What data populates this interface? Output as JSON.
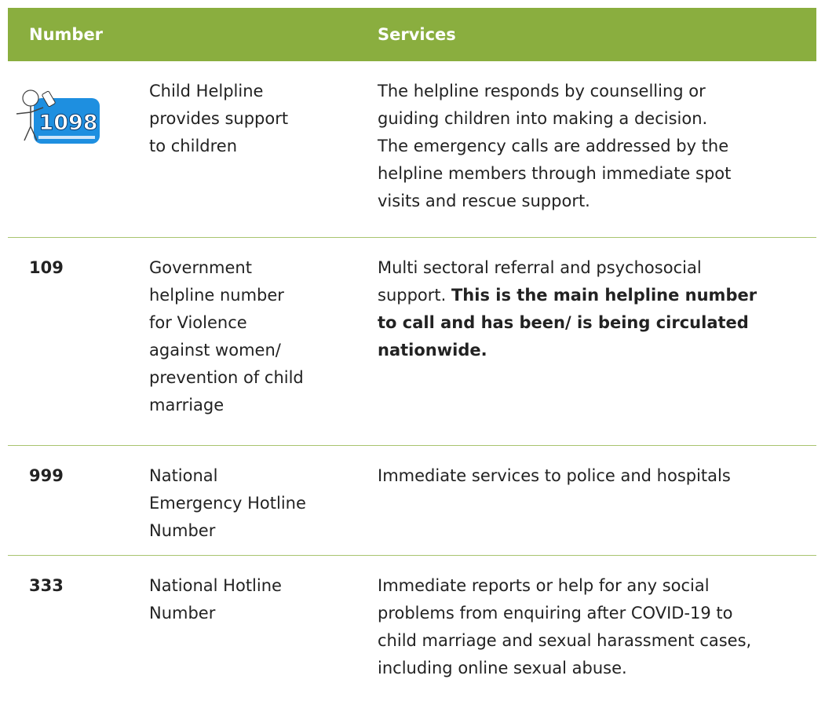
{
  "table": {
    "header": [
      "Number",
      "Services"
    ],
    "rows": [
      {
        "icon_text": "1098",
        "description": [
          "Child Helpline",
          "provides support",
          "to children"
        ],
        "services": [
          [
            {
              "text": "The helpline responds by counselling or"
            }
          ],
          [
            {
              "text": "guiding children into making a decision."
            }
          ],
          [
            {
              "text": "The emergency calls are addressed by the"
            }
          ],
          [
            {
              "text": "helpline members through immediate spot"
            }
          ],
          [
            {
              "text": "visits and rescue support."
            }
          ]
        ]
      },
      {
        "number": "109",
        "description": [
          "Government",
          "helpline number",
          "for Violence",
          "against women/",
          "prevention of child",
          "marriage"
        ],
        "services": [
          [
            {
              "text": "Multi sectoral referral and psychosocial"
            }
          ],
          [
            {
              "text": "support. "
            },
            {
              "text": "This is the main helpline number",
              "bold": true
            }
          ],
          [
            {
              "text": "to call and has been/ is being circulated",
              "bold": true
            }
          ],
          [
            {
              "text": "nationwide.",
              "bold": true
            }
          ]
        ]
      },
      {
        "number": "999",
        "description": [
          "National",
          "Emergency Hotline",
          "Number"
        ],
        "services": [
          [
            {
              "text": "Immediate services to police and hospitals"
            }
          ]
        ]
      },
      {
        "number": "333",
        "description": [
          "National Hotline",
          "Number"
        ],
        "services": [
          [
            {
              "text": "Immediate reports or help for any social"
            }
          ],
          [
            {
              "text": "problems from enquiring after COVID-19 to"
            }
          ],
          [
            {
              "text": "child marriage and sexual harassment cases,"
            }
          ],
          [
            {
              "text": "including online sexual abuse."
            }
          ]
        ]
      }
    ]
  }
}
